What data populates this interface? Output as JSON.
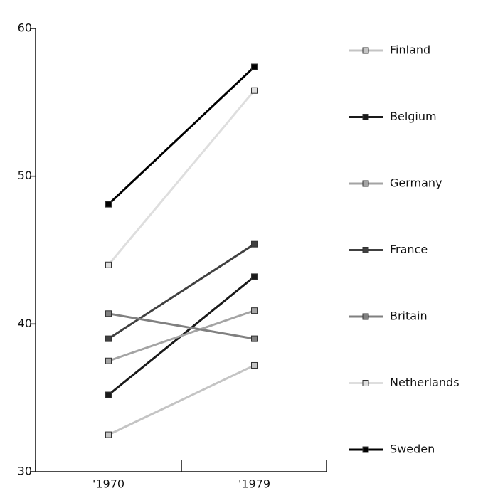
{
  "chart_data": {
    "type": "line",
    "categories": [
      "'1970",
      "'1979"
    ],
    "ylim": [
      30,
      60
    ],
    "yticks": [
      30,
      40,
      50,
      60
    ],
    "series": [
      {
        "name": "Finland",
        "color": "#c4c4c4",
        "values": [
          32.5,
          37.2
        ]
      },
      {
        "name": "Belgium",
        "color": "#1a1a1a",
        "values": [
          35.2,
          43.2
        ]
      },
      {
        "name": "Germany",
        "color": "#a4a4a4",
        "values": [
          37.5,
          40.9
        ]
      },
      {
        "name": "France",
        "color": "#404040",
        "values": [
          39.0,
          45.4
        ]
      },
      {
        "name": "Britain",
        "color": "#808080",
        "values": [
          40.7,
          39.0
        ]
      },
      {
        "name": "Netherlands",
        "color": "#dedede",
        "values": [
          44.0,
          55.8
        ]
      },
      {
        "name": "Sweden",
        "color": "#000000",
        "values": [
          48.1,
          57.4
        ]
      }
    ]
  }
}
